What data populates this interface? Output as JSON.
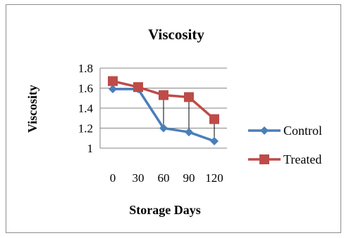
{
  "chart_data": {
    "type": "line",
    "title": "Viscosity",
    "xlabel": "Storage Days",
    "ylabel": "Viscosity",
    "categories": [
      "0",
      "30",
      "60",
      "90",
      "120"
    ],
    "yticks": [
      "1",
      "1.2",
      "1.4",
      "1.6",
      "1.8"
    ],
    "ylim": [
      1,
      1.8
    ],
    "grid": true,
    "legend_position": "right",
    "series": [
      {
        "name": "Control",
        "values": [
          1.59,
          1.59,
          1.2,
          1.16,
          1.07
        ],
        "color": "#4a7ebb",
        "marker": "diamond"
      },
      {
        "name": "Treated",
        "values": [
          1.67,
          1.61,
          1.53,
          1.51,
          1.29
        ],
        "color": "#be4b48",
        "marker": "square"
      }
    ],
    "drop_lines": true
  }
}
